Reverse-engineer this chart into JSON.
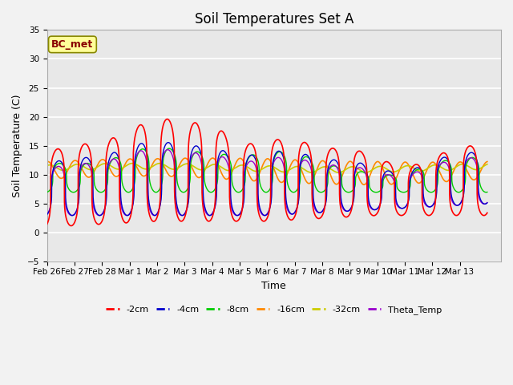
{
  "title": "Soil Temperatures Set A",
  "xlabel": "Time",
  "ylabel": "Soil Temperature (C)",
  "ylim": [
    -5,
    35
  ],
  "tick_labels": [
    "Feb 26",
    "Feb 27",
    "Feb 28",
    "Mar 1",
    "Mar 2",
    "Mar 3",
    "Mar 4",
    "Mar 5",
    "Mar 6",
    "Mar 7",
    "Mar 8",
    "Mar 9",
    "Mar 10",
    "Mar 11",
    "Mar 12",
    "Mar 13"
  ],
  "legend_labels": [
    "-2cm",
    "-4cm",
    "-8cm",
    "-16cm",
    "-32cm",
    "Theta_Temp"
  ],
  "legend_colors": [
    "#FF0000",
    "#0000CC",
    "#00CC00",
    "#FF8800",
    "#CCCC00",
    "#9900CC"
  ],
  "annotation_text": "BC_met",
  "annotation_color": "#880000",
  "annotation_bg": "#FFFF99",
  "annotation_edge": "#888800",
  "axes_bg": "#E8E8E8",
  "fig_bg": "#F2F2F2",
  "grid_color": "#FFFFFF",
  "title_fontsize": 12,
  "label_fontsize": 9,
  "tick_fontsize": 7.5
}
